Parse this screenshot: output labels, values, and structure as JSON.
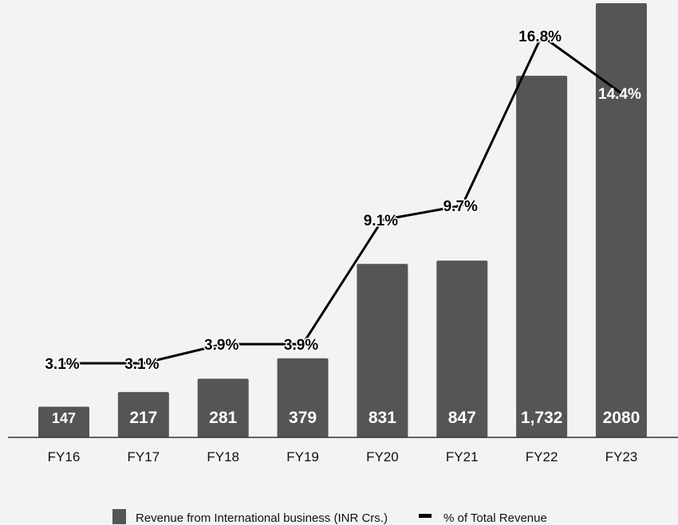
{
  "chart_data": {
    "type": "bar",
    "title": "",
    "xlabel": "",
    "ylabel": "",
    "categories": [
      "FY16",
      "FY17",
      "FY18",
      "FY19",
      "FY20",
      "FY21",
      "FY22",
      "FY23"
    ],
    "series": [
      {
        "name": "Revenue from International business (INR Crs.)",
        "type": "bar",
        "values": [
          147,
          217,
          281,
          379,
          831,
          847,
          1732,
          2080
        ],
        "labels": [
          "147",
          "217",
          "281",
          "379",
          "831",
          "847",
          "1,732",
          "2080"
        ],
        "color": "#555555"
      },
      {
        "name": "% of Total Revenue",
        "type": "line",
        "values": [
          3.1,
          3.1,
          3.9,
          3.9,
          9.1,
          9.7,
          16.8,
          14.4
        ],
        "labels": [
          "3.1%",
          "3.1%",
          "3.9%",
          "3.9%",
          "9.1%",
          "9.7%",
          "16.8%",
          "14.4%"
        ],
        "color": "#000000"
      }
    ],
    "ylim": [
      0,
      2080
    ],
    "y2lim": [
      0,
      16.8
    ],
    "grid": false,
    "legend": "bottom-center"
  }
}
